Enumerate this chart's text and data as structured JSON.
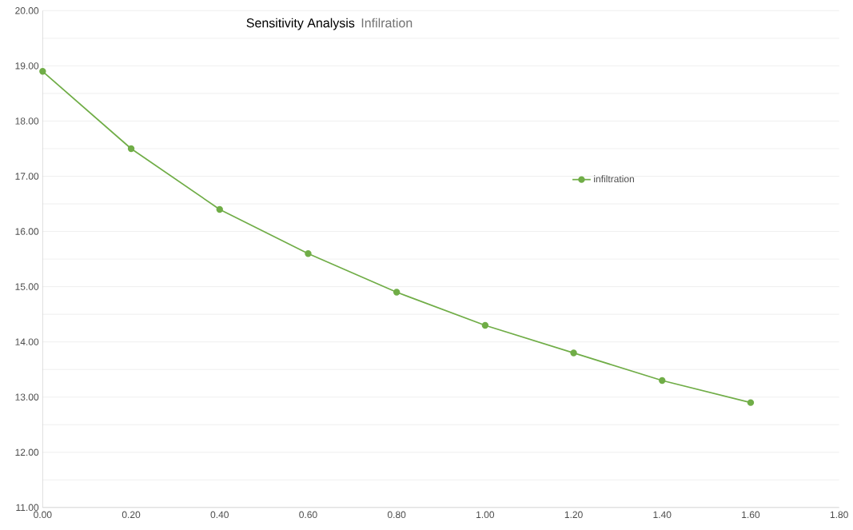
{
  "chart_data": {
    "type": "line",
    "title": "Sensitivity Analysis",
    "subtitle": "Infilration",
    "x": [
      0,
      0.2,
      0.4,
      0.6,
      0.8,
      1.0,
      1.2,
      1.4,
      1.6
    ],
    "series": [
      {
        "name": "infiltration",
        "color": "#70ad47",
        "values": [
          18.9,
          17.5,
          16.4,
          15.6,
          14.9,
          14.3,
          13.8,
          13.3,
          12.9
        ]
      }
    ],
    "xlim": [
      0,
      1.8
    ],
    "ylim": [
      11,
      20
    ],
    "xticks": [
      {
        "value": 0,
        "label": "0.00"
      },
      {
        "value": 0.2,
        "label": "0.20"
      },
      {
        "value": 0.4,
        "label": "0.40"
      },
      {
        "value": 0.6,
        "label": "0.60"
      },
      {
        "value": 0.8,
        "label": "0.80"
      },
      {
        "value": 1.0,
        "label": "1.00"
      },
      {
        "value": 1.2,
        "label": "1.20"
      },
      {
        "value": 1.4,
        "label": "1.40"
      },
      {
        "value": 1.6,
        "label": "1.60"
      },
      {
        "value": 1.8,
        "label": "1.80"
      }
    ],
    "yticks": [
      {
        "value": 11,
        "label": "11.00"
      },
      {
        "value": 11.5,
        "label": null
      },
      {
        "value": 12,
        "label": "12.00"
      },
      {
        "value": 12.5,
        "label": null
      },
      {
        "value": 13,
        "label": "13.00"
      },
      {
        "value": 13.5,
        "label": null
      },
      {
        "value": 14,
        "label": "14.00"
      },
      {
        "value": 14.5,
        "label": null
      },
      {
        "value": 15,
        "label": "15.00"
      },
      {
        "value": 15.5,
        "label": null
      },
      {
        "value": 16,
        "label": "16.00"
      },
      {
        "value": 16.5,
        "label": null
      },
      {
        "value": 17,
        "label": "17.00"
      },
      {
        "value": 17.5,
        "label": null
      },
      {
        "value": 18,
        "label": "18.00"
      },
      {
        "value": 18.5,
        "label": null
      },
      {
        "value": 19,
        "label": "19.00"
      },
      {
        "value": 19.5,
        "label": null
      },
      {
        "value": 20,
        "label": "20.00"
      }
    ],
    "grid": "y",
    "legend": "right",
    "marker": "circle",
    "line_style": "solid"
  }
}
